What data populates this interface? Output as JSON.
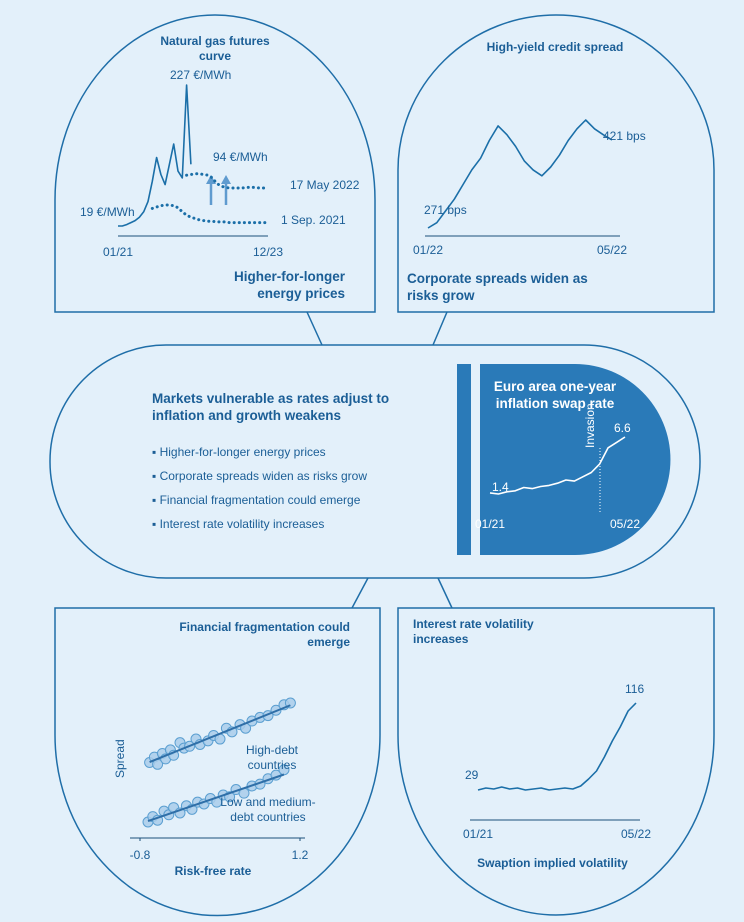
{
  "chart_data": [
    {
      "type": "line",
      "title": "Natural gas futures curve",
      "caption": "Higher-for-longer energy prices",
      "categories": [
        "01/21",
        null,
        null,
        null,
        null,
        null,
        null,
        null,
        null,
        null,
        null,
        null,
        null,
        null,
        null,
        null,
        null,
        null,
        null,
        null,
        null,
        null,
        null,
        null,
        null,
        null,
        null,
        null,
        null,
        null,
        null,
        null,
        null,
        null,
        null,
        "12/23"
      ],
      "series": [
        {
          "color": "#1b6fa8",
          "values": [
            19,
            19,
            21,
            24,
            27,
            32,
            40,
            55,
            85,
            120,
            95,
            80,
            110,
            140,
            100,
            90,
            227,
            110,
            null,
            null,
            null,
            null,
            null,
            null,
            null,
            null,
            null,
            null,
            null,
            null,
            null,
            null,
            null,
            null,
            null,
            null
          ]
        },
        {
          "name": "17 May 2022",
          "color": "#1b6fa8",
          "style": "dotted",
          "values": [
            null,
            null,
            null,
            null,
            null,
            null,
            null,
            null,
            null,
            null,
            null,
            null,
            null,
            null,
            null,
            null,
            94,
            95,
            96,
            96,
            95,
            94,
            90,
            82,
            78,
            76,
            75,
            75,
            75,
            75,
            76,
            76,
            76,
            75,
            75,
            75
          ]
        },
        {
          "name": "1 Sep. 2021",
          "color": "#1b6fa8",
          "style": "dotted",
          "values": [
            null,
            null,
            null,
            null,
            null,
            null,
            null,
            null,
            45,
            47,
            49,
            50,
            50,
            49,
            46,
            40,
            35,
            32,
            30,
            28,
            27,
            26,
            26,
            25,
            25,
            25,
            24,
            24,
            24,
            24,
            24,
            24,
            24,
            24,
            24,
            24
          ]
        }
      ],
      "annotations": [
        "227 €/MWh",
        "94 €/MWh",
        "19 €/MWh"
      ]
    },
    {
      "type": "line",
      "title": "High-yield credit spread",
      "caption": "Corporate spreads widen as risks grow",
      "categories": [
        "01/22",
        null,
        null,
        null,
        null,
        null,
        null,
        null,
        null,
        null,
        null,
        null,
        null,
        null,
        null,
        null,
        null,
        null,
        null,
        null,
        null,
        "05/22"
      ],
      "series": [
        {
          "color": "#1b6fa8",
          "values": [
            271,
            280,
            300,
            320,
            345,
            370,
            390,
            420,
            445,
            430,
            410,
            385,
            370,
            360,
            375,
            395,
            420,
            440,
            455,
            440,
            430,
            421
          ]
        }
      ],
      "annotations": [
        "271 bps",
        "421 bps"
      ]
    },
    {
      "type": "line",
      "title": "Euro area one-year inflation swap rate",
      "end_labels": true,
      "categories": [
        "01/21",
        null,
        null,
        null,
        null,
        null,
        null,
        null,
        null,
        null,
        null,
        null,
        null,
        null,
        null,
        null,
        "05/22"
      ],
      "series": [
        {
          "color": "#ffffff",
          "values": [
            1.4,
            1.3,
            1.5,
            1.6,
            1.9,
            1.8,
            2.0,
            2.1,
            2.3,
            2.6,
            2.5,
            2.9,
            3.3,
            4.1,
            5.6,
            6.1,
            6.6
          ]
        }
      ],
      "annotations": [
        "Invasion"
      ]
    },
    {
      "type": "scatter",
      "title": "Financial fragmentation could emerge",
      "x_label": "Risk-free rate",
      "y_label": "Spread",
      "xlim": [
        -0.8,
        1.2
      ],
      "xticks": [
        -0.8,
        1.2
      ],
      "series": [
        {
          "name": "High-debt countries",
          "color": "#a9cdea",
          "x": [
            -0.68,
            -0.62,
            -0.58,
            -0.52,
            -0.48,
            -0.42,
            -0.38,
            -0.3,
            -0.25,
            -0.18,
            -0.1,
            -0.05,
            0.05,
            0.12,
            0.2,
            0.28,
            0.35,
            0.45,
            0.52,
            0.6,
            0.7,
            0.8,
            0.9,
            1.0,
            1.08
          ],
          "y": [
            4.3,
            4.6,
            4.2,
            4.8,
            4.5,
            5.0,
            4.7,
            5.4,
            5.1,
            5.2,
            5.6,
            5.3,
            5.5,
            5.8,
            5.6,
            6.2,
            6.0,
            6.4,
            6.2,
            6.6,
            6.8,
            6.9,
            7.2,
            7.5,
            7.6
          ]
        },
        {
          "name": "Low and medium-debt countries",
          "color": "#a9cdea",
          "x": [
            -0.7,
            -0.64,
            -0.58,
            -0.5,
            -0.44,
            -0.38,
            -0.3,
            -0.22,
            -0.15,
            -0.08,
            0,
            0.08,
            0.16,
            0.24,
            0.32,
            0.4,
            0.5,
            0.6,
            0.7,
            0.8,
            0.9,
            1.0
          ],
          "y": [
            1.0,
            1.3,
            1.1,
            1.6,
            1.4,
            1.8,
            1.5,
            1.9,
            1.7,
            2.1,
            2.0,
            2.3,
            2.1,
            2.5,
            2.4,
            2.8,
            2.6,
            3.0,
            3.1,
            3.4,
            3.6,
            3.9
          ]
        }
      ]
    },
    {
      "type": "line",
      "title": "Interest rate volatility increases",
      "x_label": "Swaption implied volatility",
      "end_labels": true,
      "categories": [
        "01/21",
        null,
        null,
        null,
        null,
        null,
        null,
        null,
        null,
        null,
        null,
        null,
        null,
        null,
        null,
        null,
        null,
        null,
        null,
        null,
        "05/22"
      ],
      "series": [
        {
          "color": "#1b6fa8",
          "values": [
            29,
            31,
            30,
            32,
            30,
            31,
            29,
            30,
            31,
            29,
            30,
            31,
            30,
            33,
            40,
            48,
            62,
            78,
            92,
            108,
            116
          ]
        }
      ]
    }
  ],
  "panel": {
    "title": "Markets vulnerable as rates adjust to inflation and growth weakens",
    "bullets": [
      "Higher-for-longer energy prices",
      "Corporate spreads widen as risks grow",
      "Financial fragmentation could emerge",
      "Interest rate volatility increases"
    ]
  }
}
